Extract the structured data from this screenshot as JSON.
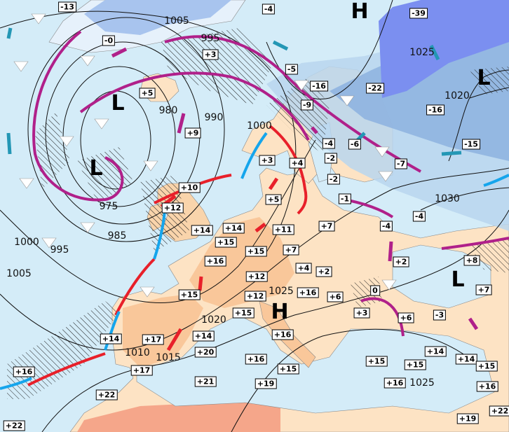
{
  "colors": {
    "sea": "#d4ecf8",
    "land": "#fde3c4",
    "land_warm": "#f9c79a",
    "land_hot": "#f5a68a",
    "cold_light": "#b9d6ef",
    "cold_mid": "#8fb4e0",
    "cold_deep": "#7b8ff0",
    "occluded_front": "#b0208a",
    "warm_front": "#e8202a",
    "cold_front": "#15a5ec",
    "wind_arrow_cold": "#2497b5",
    "isobar": "#111111"
  },
  "temperature_labels": [
    "-13",
    "-0",
    "+3",
    "+5",
    "+9",
    "+10",
    "+12",
    "+14",
    "-4",
    "-39",
    "-5",
    "-16",
    "-22",
    "-9",
    "-16",
    "-15",
    "-4",
    "-6",
    "-2",
    "-7",
    "+3",
    "+4",
    "-2",
    "+5",
    "-1",
    "-4",
    "-4",
    "+11",
    "+7",
    "+14",
    "+15",
    "+16",
    "+7",
    "+15",
    "+4",
    "+2",
    "+12",
    "+2",
    "+8",
    "+7",
    "+16",
    "+12",
    "+6",
    "0",
    "+3",
    "+6",
    "-3",
    "+15",
    "+15",
    "+16",
    "+14",
    "+17",
    "+14",
    "+20",
    "+17",
    "+16",
    "+21",
    "+16",
    "+15",
    "+15",
    "+15",
    "+14",
    "+14",
    "+15",
    "+16",
    "+16",
    "+19",
    "+22",
    "+22",
    "+19",
    "+22"
  ],
  "pressure_labels": [
    "1005",
    "995",
    "980",
    "990",
    "1000",
    "975",
    "985",
    "1000",
    "995",
    "1005",
    "1010",
    "1015",
    "1020",
    "1025",
    "1025",
    "1025",
    "1020",
    "1030"
  ],
  "pressure_centers": {
    "highs": [
      "H",
      "H"
    ],
    "lows": [
      "L",
      "L",
      "L",
      "L"
    ]
  }
}
